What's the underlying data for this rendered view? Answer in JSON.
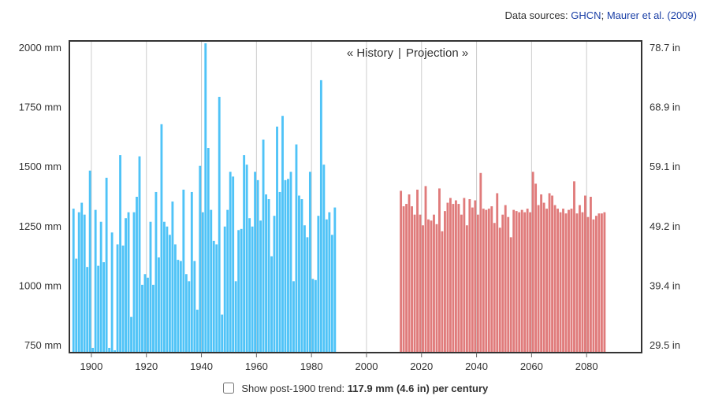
{
  "sources": {
    "prefix": "Data sources: ",
    "link1": "GHCN",
    "sep": ";",
    "link2": "Maurer et al. (2009)"
  },
  "nav": {
    "history": "« History",
    "separator": "|",
    "projection": "Projection »"
  },
  "footer": {
    "label": "Show post-1900 trend:",
    "value": "117.9 mm (4.6 in) per century",
    "checked": false
  },
  "colors": {
    "history": "#4fc3f7",
    "projection": "#e07b7b",
    "gridline": "#cccccc",
    "frame": "#333333"
  },
  "chart_data": {
    "type": "bar",
    "x_ticks": [
      "1900",
      "1920",
      "1940",
      "1960",
      "1980",
      "2000",
      "2020",
      "2040",
      "2060",
      "2080"
    ],
    "x_tick_values": [
      1900,
      1920,
      1940,
      1960,
      1980,
      2000,
      2020,
      2040,
      2060,
      2080
    ],
    "xlim": [
      1892,
      2100
    ],
    "ylim": [
      720,
      2030
    ],
    "y_left_ticks": [
      "2000 mm",
      "1750 mm",
      "1500 mm",
      "1250 mm",
      "1000 mm",
      "750 mm"
    ],
    "y_left_tick_values": [
      2000,
      1750,
      1500,
      1250,
      1000,
      750
    ],
    "y_right_ticks": [
      "78.7 in",
      "68.9 in",
      "59.1 in",
      "49.2 in",
      "39.4 in",
      "29.5 in"
    ],
    "grid": true,
    "series": [
      {
        "name": "History",
        "start_year": 1893,
        "values": [
          1325,
          1115,
          1310,
          1350,
          1300,
          1080,
          1485,
          740,
          1320,
          1085,
          1270,
          1100,
          1455,
          740,
          1225,
          730,
          1175,
          1550,
          1170,
          1285,
          1310,
          870,
          1310,
          1375,
          1545,
          1005,
          1050,
          1035,
          1270,
          1005,
          1395,
          1120,
          1680,
          1270,
          1250,
          1215,
          1355,
          1175,
          1110,
          1105,
          1405,
          1050,
          1020,
          1395,
          1105,
          900,
          1505,
          1310,
          2020,
          1580,
          1320,
          1190,
          1175,
          1795,
          880,
          1250,
          1320,
          1480,
          1460,
          1020,
          1235,
          1240,
          1550,
          1510,
          1285,
          1250,
          1480,
          1445,
          1275,
          1615,
          1385,
          1365,
          1125,
          1295,
          1670,
          1395,
          1715,
          1445,
          1450,
          1480,
          1020,
          1595,
          1380,
          1365,
          1255,
          1205,
          1480,
          1030,
          1025,
          1295,
          1865,
          1510,
          1280,
          1310,
          1215,
          1330
        ]
      },
      {
        "name": "Projection",
        "start_year": 2012,
        "values": [
          1400,
          1335,
          1345,
          1385,
          1335,
          1300,
          1405,
          1300,
          1255,
          1420,
          1280,
          1275,
          1300,
          1260,
          1410,
          1230,
          1315,
          1350,
          1370,
          1345,
          1360,
          1345,
          1300,
          1370,
          1255,
          1365,
          1330,
          1360,
          1300,
          1475,
          1325,
          1320,
          1325,
          1335,
          1265,
          1390,
          1245,
          1300,
          1340,
          1290,
          1205,
          1320,
          1315,
          1310,
          1320,
          1310,
          1325,
          1310,
          1480,
          1430,
          1340,
          1385,
          1350,
          1325,
          1390,
          1380,
          1340,
          1325,
          1310,
          1325,
          1305,
          1320,
          1325,
          1440,
          1305,
          1340,
          1310,
          1380,
          1290,
          1375,
          1280,
          1295,
          1305,
          1305,
          1310
        ]
      }
    ]
  }
}
